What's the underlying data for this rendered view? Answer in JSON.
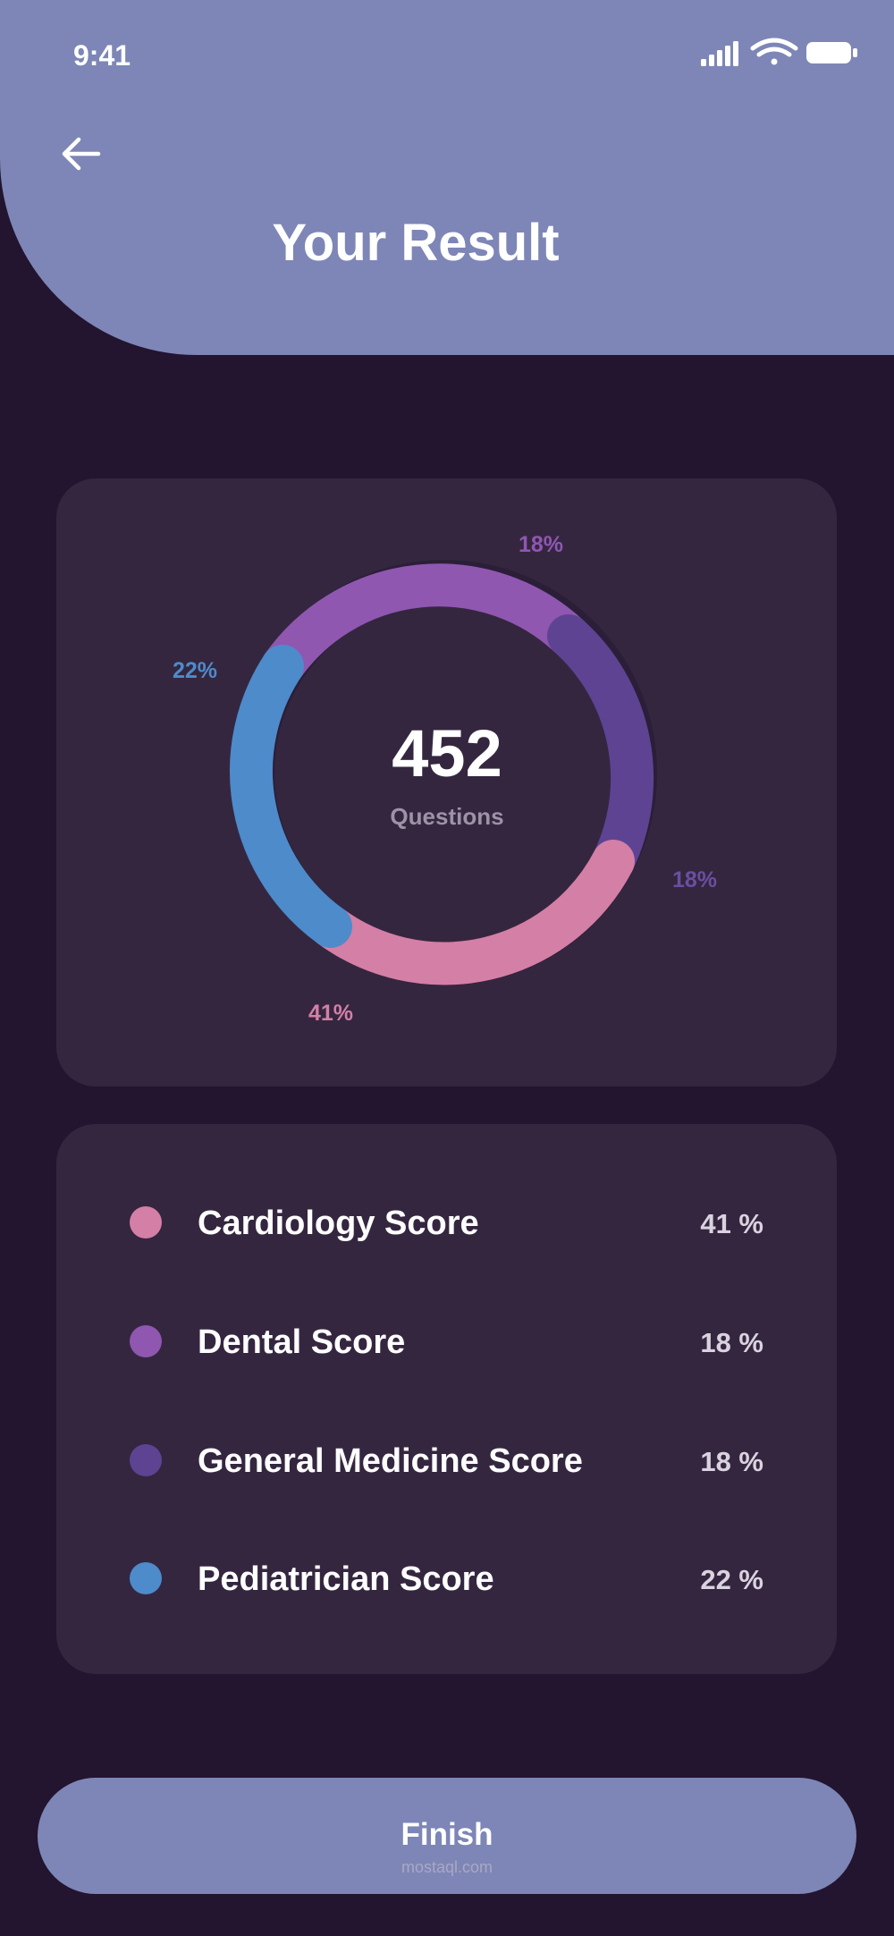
{
  "status_bar": {
    "time": "9:41"
  },
  "header": {
    "title": "Your Result"
  },
  "summary": {
    "total": "452",
    "total_label": "Questions",
    "segments": [
      {
        "name": "Cardiology Score",
        "label": "41%",
        "color": "#d47fa6"
      },
      {
        "name": "Dental Score",
        "label": "18%",
        "color": "#8f57b0"
      },
      {
        "name": "General Medicine Score",
        "label": "18%",
        "color": "#5e4393"
      },
      {
        "name": "Pediatrician Score",
        "label": "22%",
        "color": "#4d8bcb"
      }
    ]
  },
  "legend": [
    {
      "label": "Cardiology Score",
      "value": "41 %",
      "color": "#d47fa6"
    },
    {
      "label": "Dental Score",
      "value": "18 %",
      "color": "#8f57b0"
    },
    {
      "label": "General Medicine Score",
      "value": "18 %",
      "color": "#5e4393"
    },
    {
      "label": "Pediatrician Score",
      "value": "22 %",
      "color": "#4d8bcb"
    }
  ],
  "actions": {
    "finish_label": "Finish"
  },
  "watermark": "mostaql.com"
}
